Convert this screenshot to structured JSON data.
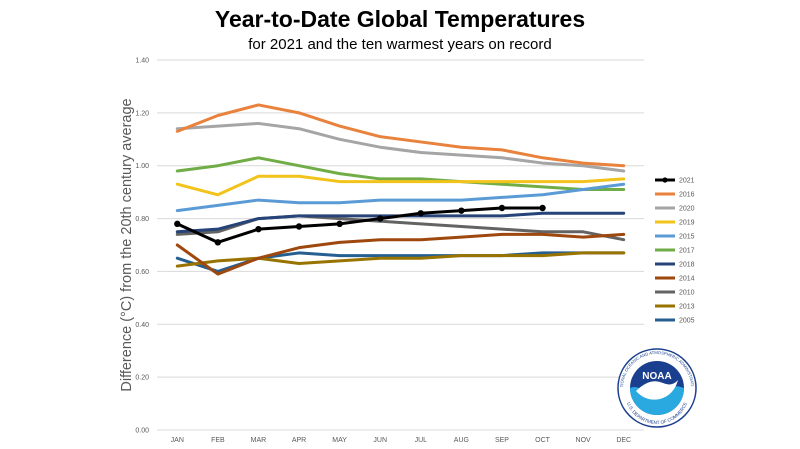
{
  "chart_data": {
    "type": "line",
    "title": "Year-to-Date Global Temperatures",
    "subtitle": "for 2021 and the ten warmest years on record",
    "ylabel": "Difference (°C) from the 20th century average",
    "xlabel": "",
    "categories": [
      "JAN",
      "FEB",
      "MAR",
      "APR",
      "MAY",
      "JUN",
      "JUL",
      "AUG",
      "SEP",
      "OCT",
      "NOV",
      "DEC"
    ],
    "yticks": [
      "0.00",
      "0.20",
      "0.40",
      "0.60",
      "0.80",
      "1.00",
      "1.20",
      "1.40"
    ],
    "ylim": [
      0,
      1.4
    ],
    "grid": "horizontal",
    "legend_position": "right",
    "series": [
      {
        "name": "2021",
        "color": "#000000",
        "markers": true,
        "values": [
          0.78,
          0.71,
          0.76,
          0.77,
          0.78,
          0.8,
          0.82,
          0.83,
          0.84,
          0.84,
          null,
          null
        ]
      },
      {
        "name": "2016",
        "color": "#E8823C",
        "markers": false,
        "values": [
          1.13,
          1.19,
          1.23,
          1.2,
          1.15,
          1.11,
          1.09,
          1.07,
          1.06,
          1.03,
          1.01,
          1.0
        ]
      },
      {
        "name": "2020",
        "color": "#A5A5A5",
        "markers": false,
        "values": [
          1.14,
          1.15,
          1.16,
          1.14,
          1.1,
          1.07,
          1.05,
          1.04,
          1.03,
          1.01,
          1.0,
          0.98
        ]
      },
      {
        "name": "2019",
        "color": "#F2C31A",
        "markers": false,
        "values": [
          0.93,
          0.89,
          0.96,
          0.96,
          0.94,
          0.94,
          0.94,
          0.94,
          0.94,
          0.94,
          0.94,
          0.95
        ]
      },
      {
        "name": "2015",
        "color": "#5B9BD5",
        "markers": false,
        "values": [
          0.83,
          0.85,
          0.87,
          0.86,
          0.86,
          0.87,
          0.87,
          0.87,
          0.88,
          0.89,
          0.91,
          0.93
        ]
      },
      {
        "name": "2017",
        "color": "#70AD47",
        "markers": false,
        "values": [
          0.98,
          1.0,
          1.03,
          1.0,
          0.97,
          0.95,
          0.95,
          0.94,
          0.93,
          0.92,
          0.91,
          0.91
        ]
      },
      {
        "name": "2018",
        "color": "#264478",
        "markers": false,
        "values": [
          0.75,
          0.76,
          0.8,
          0.81,
          0.81,
          0.81,
          0.81,
          0.81,
          0.81,
          0.82,
          0.82,
          0.82
        ]
      },
      {
        "name": "2014",
        "color": "#9E480E",
        "markers": false,
        "values": [
          0.7,
          0.59,
          0.65,
          0.69,
          0.71,
          0.72,
          0.72,
          0.73,
          0.74,
          0.74,
          0.73,
          0.74
        ]
      },
      {
        "name": "2010",
        "color": "#636363",
        "markers": false,
        "values": [
          0.74,
          0.75,
          0.8,
          0.81,
          0.8,
          0.79,
          0.78,
          0.77,
          0.76,
          0.75,
          0.75,
          0.72
        ]
      },
      {
        "name": "2013",
        "color": "#997300",
        "markers": false,
        "values": [
          0.62,
          0.64,
          0.65,
          0.63,
          0.64,
          0.65,
          0.65,
          0.66,
          0.66,
          0.66,
          0.67,
          0.67
        ]
      },
      {
        "name": "2005",
        "color": "#255E91",
        "markers": false,
        "values": [
          0.65,
          0.6,
          0.65,
          0.67,
          0.66,
          0.66,
          0.66,
          0.66,
          0.66,
          0.67,
          0.67,
          0.67
        ]
      }
    ]
  },
  "logo": {
    "name": "NOAA",
    "ring_text_top": "NATIONAL OCEANIC AND ATMOSPHERIC ADMINISTRATION",
    "ring_text_bottom": "U.S. DEPARTMENT OF COMMERCE"
  }
}
